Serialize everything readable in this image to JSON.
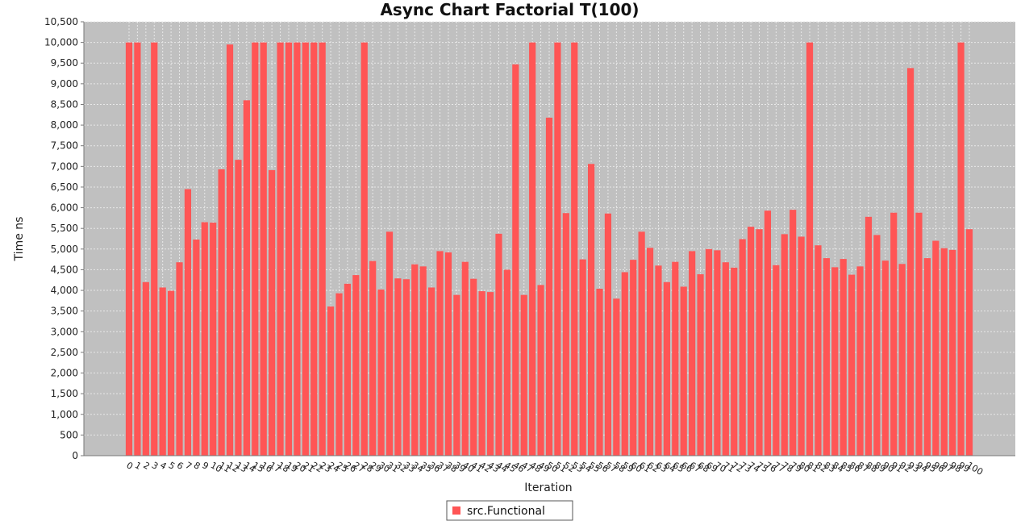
{
  "chart_data": {
    "type": "bar",
    "title": "Async Chart Factorial T(100)",
    "xlabel": "Iteration",
    "ylabel": "Time ns",
    "ylim": [
      0,
      10500
    ],
    "yticks": [
      0,
      500,
      1000,
      1500,
      2000,
      2500,
      3000,
      3500,
      4000,
      4500,
      5000,
      5500,
      6000,
      6500,
      7000,
      7500,
      8000,
      8500,
      9000,
      9500,
      10000,
      10500
    ],
    "ytick_labels": [
      "0",
      "500",
      "1,000",
      "1,500",
      "2,000",
      "2,500",
      "3,000",
      "3,500",
      "4,000",
      "4,500",
      "5,000",
      "5,500",
      "6,000",
      "6,500",
      "7,000",
      "7,500",
      "8,000",
      "8,500",
      "9,000",
      "9,500",
      "10,000",
      "10,500"
    ],
    "grid": true,
    "legend_position": "bottom-center",
    "colors": {
      "bar": "#ff5555",
      "plot_bg": "#c0c0c0",
      "grid": "#e8e8e8"
    },
    "categories": [
      "0",
      "1",
      "2",
      "3",
      "4",
      "5",
      "6",
      "7",
      "8",
      "9",
      "10",
      "11",
      "12",
      "13",
      "14",
      "15",
      "16",
      "17",
      "18",
      "19",
      "20",
      "21",
      "22",
      "23",
      "24",
      "25",
      "26",
      "27",
      "28",
      "29",
      "30",
      "31",
      "32",
      "33",
      "34",
      "35",
      "36",
      "37",
      "38",
      "39",
      "40",
      "41",
      "42",
      "43",
      "44",
      "45",
      "46",
      "47",
      "48",
      "49",
      "50",
      "51",
      "52",
      "53",
      "54",
      "55",
      "56",
      "57",
      "58",
      "59",
      "60",
      "61",
      "62",
      "63",
      "64",
      "65",
      "66",
      "67",
      "68",
      "69",
      "70",
      "71",
      "72",
      "73",
      "74",
      "75",
      "76",
      "77",
      "78",
      "79",
      "80",
      "81",
      "82",
      "83",
      "84",
      "85",
      "86",
      "87",
      "88",
      "89",
      "90",
      "91",
      "92",
      "93",
      "94",
      "95",
      "96",
      "97",
      "98",
      "99",
      "100"
    ],
    "series": [
      {
        "name": "src.Functional",
        "values": [
          10000,
          10000,
          4200,
          10000,
          4070,
          3990,
          4680,
          6450,
          5230,
          5650,
          5640,
          6930,
          9950,
          7160,
          8600,
          10000,
          10000,
          6910,
          10000,
          10000,
          10000,
          10000,
          10000,
          10000,
          3610,
          3930,
          4160,
          4370,
          10000,
          4710,
          4020,
          5420,
          4290,
          4270,
          4630,
          4580,
          4070,
          4950,
          4920,
          3890,
          4690,
          4280,
          3980,
          3960,
          5370,
          4500,
          9470,
          3890,
          10000,
          4130,
          8180,
          10000,
          5870,
          10000,
          4750,
          7060,
          4040,
          5860,
          3800,
          4440,
          4740,
          5420,
          5030,
          4600,
          4200,
          4690,
          4090,
          4950,
          4390,
          5000,
          4970,
          4680,
          4550,
          5240,
          5540,
          5480,
          5930,
          4610,
          5360,
          5950,
          5300,
          10000,
          5090,
          4780,
          4560,
          4760,
          4380,
          4580,
          5780,
          5340,
          4720,
          5880,
          4640,
          9380,
          5880,
          4780,
          5200,
          5020,
          4980,
          10000,
          5480
        ]
      }
    ]
  }
}
